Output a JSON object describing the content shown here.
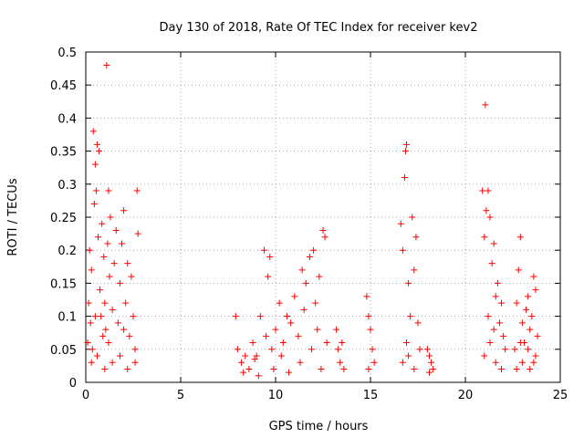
{
  "chart_data": {
    "type": "scatter",
    "title": "Day 130 of 2018, Rate Of TEC Index for receiver kev2",
    "xlabel": "GPS time / hours",
    "ylabel": "ROTI / TECUs",
    "xlim": [
      0,
      25
    ],
    "ylim": [
      0,
      0.5
    ],
    "x_ticks": [
      "0",
      "5",
      "10",
      "15",
      "20",
      "25"
    ],
    "y_ticks": [
      "0",
      "0.05",
      "0.1",
      "0.15",
      "0.2",
      "0.25",
      "0.3",
      "0.35",
      "0.4",
      "0.45",
      "0.5"
    ],
    "grid": true,
    "marker": "+",
    "color": "#ff0000",
    "series": [
      {
        "points": [
          [
            0.1,
            0.06
          ],
          [
            0.15,
            0.12
          ],
          [
            0.2,
            0.2
          ],
          [
            0.25,
            0.09
          ],
          [
            0.3,
            0.17
          ],
          [
            0.35,
            0.05
          ],
          [
            0.4,
            0.38
          ],
          [
            0.45,
            0.27
          ],
          [
            0.5,
            0.33
          ],
          [
            0.55,
            0.29
          ],
          [
            0.6,
            0.36
          ],
          [
            0.65,
            0.22
          ],
          [
            0.7,
            0.35
          ],
          [
            0.75,
            0.14
          ],
          [
            0.8,
            0.1
          ],
          [
            0.85,
            0.24
          ],
          [
            0.9,
            0.07
          ],
          [
            0.95,
            0.19
          ],
          [
            1.0,
            0.12
          ],
          [
            1.05,
            0.08
          ],
          [
            1.1,
            0.48
          ],
          [
            1.15,
            0.21
          ],
          [
            1.2,
            0.29
          ],
          [
            1.25,
            0.16
          ],
          [
            1.3,
            0.25
          ],
          [
            1.4,
            0.11
          ],
          [
            1.5,
            0.18
          ],
          [
            1.6,
            0.23
          ],
          [
            1.7,
            0.09
          ],
          [
            1.8,
            0.15
          ],
          [
            1.9,
            0.21
          ],
          [
            2.0,
            0.26
          ],
          [
            2.1,
            0.12
          ],
          [
            2.2,
            0.18
          ],
          [
            2.3,
            0.07
          ],
          [
            2.4,
            0.16
          ],
          [
            2.5,
            0.1
          ],
          [
            2.6,
            0.05
          ],
          [
            2.7,
            0.29
          ],
          [
            2.75,
            0.225
          ],
          [
            0.3,
            0.03
          ],
          [
            0.6,
            0.04
          ],
          [
            1.0,
            0.02
          ],
          [
            1.4,
            0.03
          ],
          [
            1.8,
            0.04
          ],
          [
            2.2,
            0.02
          ],
          [
            2.6,
            0.03
          ],
          [
            0.5,
            0.1
          ],
          [
            1.2,
            0.06
          ],
          [
            2.0,
            0.08
          ],
          [
            7.9,
            0.1
          ],
          [
            8.0,
            0.05
          ],
          [
            8.2,
            0.03
          ],
          [
            8.4,
            0.04
          ],
          [
            8.6,
            0.02
          ],
          [
            8.8,
            0.06
          ],
          [
            9.0,
            0.04
          ],
          [
            9.2,
            0.1
          ],
          [
            9.4,
            0.2
          ],
          [
            9.5,
            0.07
          ],
          [
            9.6,
            0.16
          ],
          [
            9.7,
            0.19
          ],
          [
            9.8,
            0.05
          ],
          [
            10.0,
            0.08
          ],
          [
            10.2,
            0.12
          ],
          [
            10.4,
            0.06
          ],
          [
            10.6,
            0.1
          ],
          [
            10.8,
            0.09
          ],
          [
            11.0,
            0.13
          ],
          [
            11.2,
            0.07
          ],
          [
            11.4,
            0.17
          ],
          [
            11.5,
            0.11
          ],
          [
            11.6,
            0.15
          ],
          [
            11.8,
            0.19
          ],
          [
            12.0,
            0.2
          ],
          [
            12.1,
            0.12
          ],
          [
            12.2,
            0.08
          ],
          [
            12.3,
            0.16
          ],
          [
            12.5,
            0.23
          ],
          [
            12.6,
            0.22
          ],
          [
            8.3,
            0.015
          ],
          [
            9.1,
            0.01
          ],
          [
            9.9,
            0.02
          ],
          [
            10.7,
            0.015
          ],
          [
            11.3,
            0.03
          ],
          [
            12.4,
            0.02
          ],
          [
            8.9,
            0.035
          ],
          [
            10.3,
            0.04
          ],
          [
            11.9,
            0.05
          ],
          [
            12.7,
            0.06
          ],
          [
            13.2,
            0.08
          ],
          [
            13.3,
            0.05
          ],
          [
            13.4,
            0.03
          ],
          [
            13.5,
            0.06
          ],
          [
            13.6,
            0.02
          ],
          [
            14.8,
            0.13
          ],
          [
            14.9,
            0.1
          ],
          [
            15.0,
            0.08
          ],
          [
            15.1,
            0.05
          ],
          [
            15.2,
            0.03
          ],
          [
            14.9,
            0.02
          ],
          [
            16.6,
            0.24
          ],
          [
            16.7,
            0.2
          ],
          [
            16.8,
            0.31
          ],
          [
            16.85,
            0.35
          ],
          [
            16.9,
            0.36
          ],
          [
            17.0,
            0.15
          ],
          [
            17.1,
            0.1
          ],
          [
            17.2,
            0.25
          ],
          [
            17.3,
            0.17
          ],
          [
            17.4,
            0.22
          ],
          [
            17.5,
            0.09
          ],
          [
            17.6,
            0.05
          ],
          [
            16.7,
            0.03
          ],
          [
            17.0,
            0.04
          ],
          [
            17.3,
            0.02
          ],
          [
            16.9,
            0.06
          ],
          [
            18.0,
            0.05
          ],
          [
            18.1,
            0.04
          ],
          [
            18.2,
            0.03
          ],
          [
            18.3,
            0.02
          ],
          [
            18.1,
            0.015
          ],
          [
            20.9,
            0.29
          ],
          [
            21.0,
            0.22
          ],
          [
            21.05,
            0.42
          ],
          [
            21.1,
            0.26
          ],
          [
            21.2,
            0.29
          ],
          [
            21.3,
            0.25
          ],
          [
            21.4,
            0.18
          ],
          [
            21.5,
            0.21
          ],
          [
            21.6,
            0.13
          ],
          [
            21.7,
            0.15
          ],
          [
            21.8,
            0.09
          ],
          [
            21.9,
            0.12
          ],
          [
            22.0,
            0.07
          ],
          [
            22.1,
            0.05
          ],
          [
            21.0,
            0.04
          ],
          [
            21.3,
            0.06
          ],
          [
            21.6,
            0.03
          ],
          [
            21.9,
            0.02
          ],
          [
            21.2,
            0.1
          ],
          [
            21.5,
            0.08
          ],
          [
            22.6,
            0.05
          ],
          [
            22.7,
            0.12
          ],
          [
            22.8,
            0.17
          ],
          [
            22.9,
            0.22
          ],
          [
            23.0,
            0.09
          ],
          [
            23.1,
            0.06
          ],
          [
            23.2,
            0.11
          ],
          [
            23.3,
            0.13
          ],
          [
            23.4,
            0.08
          ],
          [
            23.5,
            0.1
          ],
          [
            23.6,
            0.16
          ],
          [
            23.7,
            0.14
          ],
          [
            23.8,
            0.07
          ],
          [
            22.7,
            0.02
          ],
          [
            23.0,
            0.03
          ],
          [
            23.4,
            0.02
          ],
          [
            23.7,
            0.04
          ],
          [
            22.9,
            0.06
          ],
          [
            23.3,
            0.05
          ],
          [
            23.6,
            0.03
          ]
        ]
      }
    ]
  }
}
